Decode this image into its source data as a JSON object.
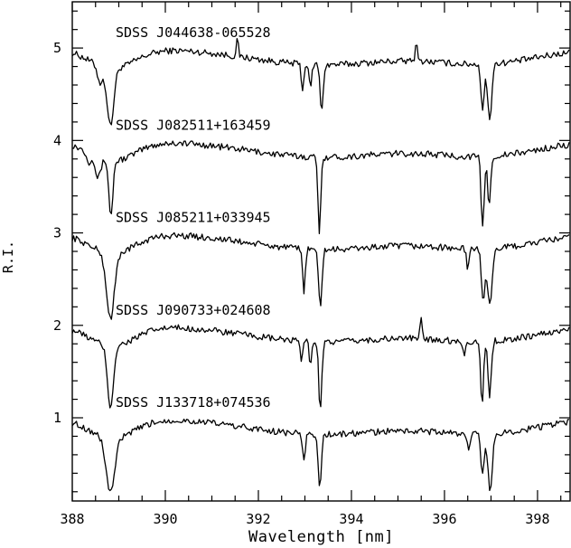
{
  "chart_data": {
    "type": "line",
    "title": "",
    "xlabel": "Wavelength [nm]",
    "ylabel": "R.I.",
    "xlim": [
      388.0,
      398.7
    ],
    "ylim": [
      0.1,
      5.5
    ],
    "xticks_major": [
      388,
      390,
      392,
      394,
      396,
      398
    ],
    "xtick_labels": [
      "388",
      "390",
      "392",
      "394",
      "396",
      "398"
    ],
    "yticks_major": [
      1,
      2,
      3,
      4,
      5
    ],
    "ytick_labels": [
      "1",
      "2",
      "3",
      "4",
      "5"
    ],
    "grid": false,
    "legend": "none",
    "line_color": "#000000",
    "series": [
      {
        "name": "SDSS J044638-065528",
        "offset": 5,
        "dips": [
          {
            "center": 388.82,
            "depth": 0.62,
            "width": 0.1
          },
          {
            "center": 388.6,
            "depth": 0.18,
            "width": 0.08
          },
          {
            "center": 392.95,
            "depth": 0.3,
            "width": 0.035
          },
          {
            "center": 393.12,
            "depth": 0.28,
            "width": 0.035
          },
          {
            "center": 393.36,
            "depth": 0.52,
            "width": 0.045
          },
          {
            "center": 396.82,
            "depth": 0.48,
            "width": 0.05
          },
          {
            "center": 396.97,
            "depth": 0.62,
            "width": 0.06
          }
        ],
        "emissions": [
          {
            "center": 391.55,
            "height": 0.18,
            "width": 0.03
          },
          {
            "center": 395.4,
            "height": 0.18,
            "width": 0.04
          }
        ]
      },
      {
        "name": "SDSS J082511+163459",
        "offset": 4,
        "dips": [
          {
            "center": 388.83,
            "depth": 0.6,
            "width": 0.06
          },
          {
            "center": 388.55,
            "depth": 0.22,
            "width": 0.08
          },
          {
            "center": 388.35,
            "depth": 0.1,
            "width": 0.06
          },
          {
            "center": 393.31,
            "depth": 0.85,
            "width": 0.04
          },
          {
            "center": 396.82,
            "depth": 0.78,
            "width": 0.045
          },
          {
            "center": 396.96,
            "depth": 0.55,
            "width": 0.045
          }
        ],
        "emissions": []
      },
      {
        "name": "SDSS J085211+033945",
        "offset": 3,
        "dips": [
          {
            "center": 388.82,
            "depth": 0.7,
            "width": 0.12
          },
          {
            "center": 392.98,
            "depth": 0.45,
            "width": 0.04
          },
          {
            "center": 393.33,
            "depth": 0.62,
            "width": 0.05
          },
          {
            "center": 396.5,
            "depth": 0.2,
            "width": 0.04
          },
          {
            "center": 396.83,
            "depth": 0.55,
            "width": 0.05
          },
          {
            "center": 396.97,
            "depth": 0.62,
            "width": 0.07
          }
        ],
        "emissions": []
      },
      {
        "name": "SDSS J090733+024608",
        "offset": 2,
        "dips": [
          {
            "center": 388.82,
            "depth": 0.66,
            "width": 0.09
          },
          {
            "center": 392.92,
            "depth": 0.2,
            "width": 0.035
          },
          {
            "center": 393.12,
            "depth": 0.25,
            "width": 0.035
          },
          {
            "center": 393.33,
            "depth": 0.72,
            "width": 0.045
          },
          {
            "center": 396.42,
            "depth": 0.15,
            "width": 0.04
          },
          {
            "center": 396.81,
            "depth": 0.66,
            "width": 0.045
          },
          {
            "center": 396.97,
            "depth": 0.58,
            "width": 0.05
          }
        ],
        "emissions": [
          {
            "center": 395.5,
            "height": 0.2,
            "width": 0.035
          }
        ]
      },
      {
        "name": "SDSS J133718+074536",
        "offset": 1,
        "dips": [
          {
            "center": 388.82,
            "depth": 0.58,
            "width": 0.13
          },
          {
            "center": 392.98,
            "depth": 0.3,
            "width": 0.04
          },
          {
            "center": 393.32,
            "depth": 0.55,
            "width": 0.05
          },
          {
            "center": 396.52,
            "depth": 0.2,
            "width": 0.04
          },
          {
            "center": 396.82,
            "depth": 0.45,
            "width": 0.05
          },
          {
            "center": 396.98,
            "depth": 0.6,
            "width": 0.07
          }
        ],
        "emissions": []
      }
    ]
  }
}
